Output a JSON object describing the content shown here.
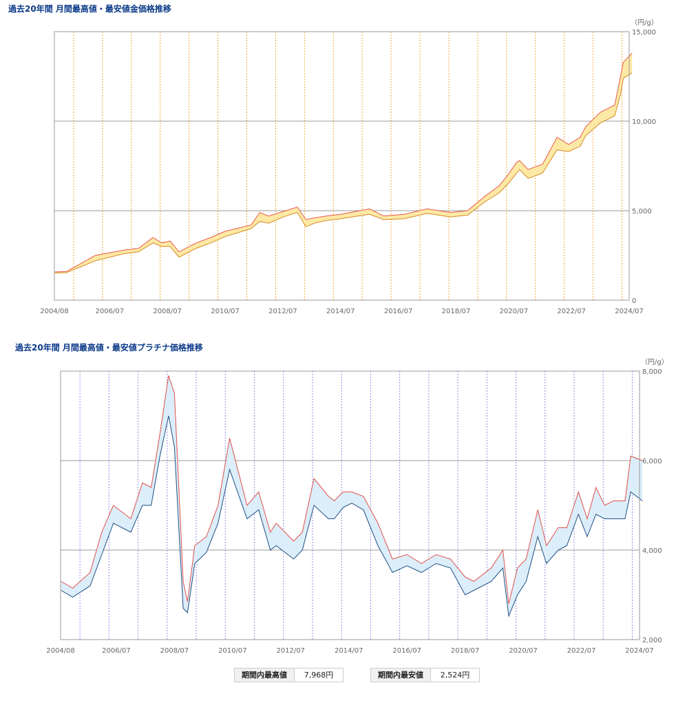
{
  "chart_data": [
    {
      "type": "area",
      "title": "過去20年間 月間最高値・最安値金価格推移",
      "unit_label": "（円/g）",
      "x_ticks": [
        "2004/08",
        "2006/07",
        "2008/07",
        "2010/07",
        "2012/07",
        "2014/07",
        "2016/07",
        "2018/07",
        "2020/07",
        "2022/07",
        "2024/07"
      ],
      "y_ticks": [
        "0",
        "5,000",
        "10,000",
        "15,000"
      ],
      "ylim": [
        0,
        15000
      ],
      "grid": true,
      "colors": {
        "high": "#e8584a",
        "low": "#d48a22",
        "band": "#fde9a6",
        "vgrid": "#f0a830"
      },
      "x_year_points": [
        2004.6,
        2005,
        2006,
        2007,
        2007.5,
        2008,
        2008.3,
        2008.6,
        2008.9,
        2009.5,
        2010,
        2010.5,
        2011.4,
        2011.7,
        2012,
        2012.6,
        2013.0,
        2013.3,
        2013.6,
        2014,
        2014.5,
        2015.5,
        2016,
        2016.7,
        2017.5,
        2018.3,
        2018.9,
        2019.5,
        2020.0,
        2020.3,
        2020.6,
        2020.7,
        2021.0,
        2021.5,
        2022.0,
        2022.4,
        2022.8,
        2023.0,
        2023.5,
        2024.0,
        2024.2,
        2024.3,
        2024.6
      ],
      "series": [
        {
          "name": "最高値",
          "values": [
            1580,
            1600,
            2500,
            2800,
            2900,
            3500,
            3200,
            3300,
            2700,
            3200,
            3500,
            3850,
            4200,
            4900,
            4700,
            5000,
            5200,
            4500,
            4600,
            4700,
            4800,
            5100,
            4700,
            4800,
            5100,
            4900,
            5000,
            5800,
            6400,
            7000,
            7700,
            7800,
            7300,
            7600,
            9100,
            8700,
            9100,
            9700,
            10500,
            10900,
            12500,
            13300,
            13800
          ]
        },
        {
          "name": "最安値",
          "values": [
            1520,
            1540,
            2200,
            2600,
            2700,
            3200,
            3000,
            3000,
            2400,
            2900,
            3200,
            3550,
            4000,
            4400,
            4300,
            4700,
            4900,
            4100,
            4300,
            4450,
            4550,
            4800,
            4500,
            4550,
            4850,
            4650,
            4750,
            5500,
            6000,
            6500,
            7100,
            7300,
            6800,
            7100,
            8400,
            8300,
            8600,
            9200,
            9900,
            10300,
            11500,
            12400,
            12700
          ]
        }
      ]
    },
    {
      "type": "area",
      "title": "過去20年間 月間最高値・最安値プラチナ価格推移",
      "unit_label": "（円/g）",
      "x_ticks": [
        "2004/08",
        "2006/07",
        "2008/07",
        "2010/07",
        "2012/07",
        "2014/07",
        "2016/07",
        "2018/07",
        "2020/07",
        "2022/07",
        "2024/07"
      ],
      "y_ticks": [
        "2,000",
        "4,000",
        "6,000",
        "8,000"
      ],
      "ylim": [
        2000,
        8000
      ],
      "grid": true,
      "colors": {
        "high": "#e0504a",
        "low": "#1d4f86",
        "band": "#dceef9",
        "vgrid": "#8c8ce6"
      },
      "x_year_points": [
        2004.6,
        2005.0,
        2005.6,
        2006.0,
        2006.4,
        2007.0,
        2007.4,
        2007.7,
        2008.0,
        2008.3,
        2008.5,
        2008.8,
        2008.95,
        2009.2,
        2009.6,
        2010.0,
        2010.4,
        2011.0,
        2011.4,
        2011.8,
        2012.0,
        2012.6,
        2012.9,
        2013.3,
        2013.8,
        2014.0,
        2014.3,
        2014.6,
        2015.0,
        2015.5,
        2016.0,
        2016.5,
        2017.0,
        2017.5,
        2018.0,
        2018.5,
        2018.8,
        2019.4,
        2019.8,
        2020.0,
        2020.3,
        2020.6,
        2021.0,
        2021.3,
        2021.7,
        2022.0,
        2022.4,
        2022.7,
        2023.0,
        2023.3,
        2023.6,
        2024.0,
        2024.2,
        2024.6
      ],
      "series": [
        {
          "name": "最高値",
          "values": [
            3300,
            3150,
            3500,
            4400,
            5000,
            4700,
            5500,
            5400,
            6600,
            7900,
            7500,
            3300,
            2850,
            4100,
            4300,
            5000,
            6500,
            5000,
            5300,
            4400,
            4600,
            4200,
            4400,
            5600,
            5200,
            5100,
            5300,
            5300,
            5200,
            4600,
            3800,
            3900,
            3700,
            3900,
            3800,
            3400,
            3300,
            3600,
            4000,
            2800,
            3600,
            3800,
            4900,
            4100,
            4500,
            4500,
            5300,
            4700,
            5400,
            5000,
            5100,
            5100,
            6100,
            6000
          ]
        },
        {
          "name": "最安値",
          "values": [
            3100,
            2950,
            3200,
            3900,
            4600,
            4400,
            5000,
            5000,
            6100,
            7000,
            6300,
            2700,
            2600,
            3700,
            3950,
            4600,
            5800,
            4700,
            4900,
            4000,
            4100,
            3800,
            4000,
            5000,
            4700,
            4700,
            4950,
            5050,
            4900,
            4100,
            3500,
            3650,
            3500,
            3700,
            3600,
            3000,
            3100,
            3300,
            3600,
            2524,
            3000,
            3300,
            4300,
            3700,
            4000,
            4100,
            4800,
            4300,
            4800,
            4700,
            4700,
            4700,
            5300,
            5100
          ]
        }
      ]
    }
  ],
  "summary": {
    "high_label": "期間内最高値",
    "high_value": "7,968円",
    "low_label": "期間内最安値",
    "low_value": "2,524円"
  }
}
